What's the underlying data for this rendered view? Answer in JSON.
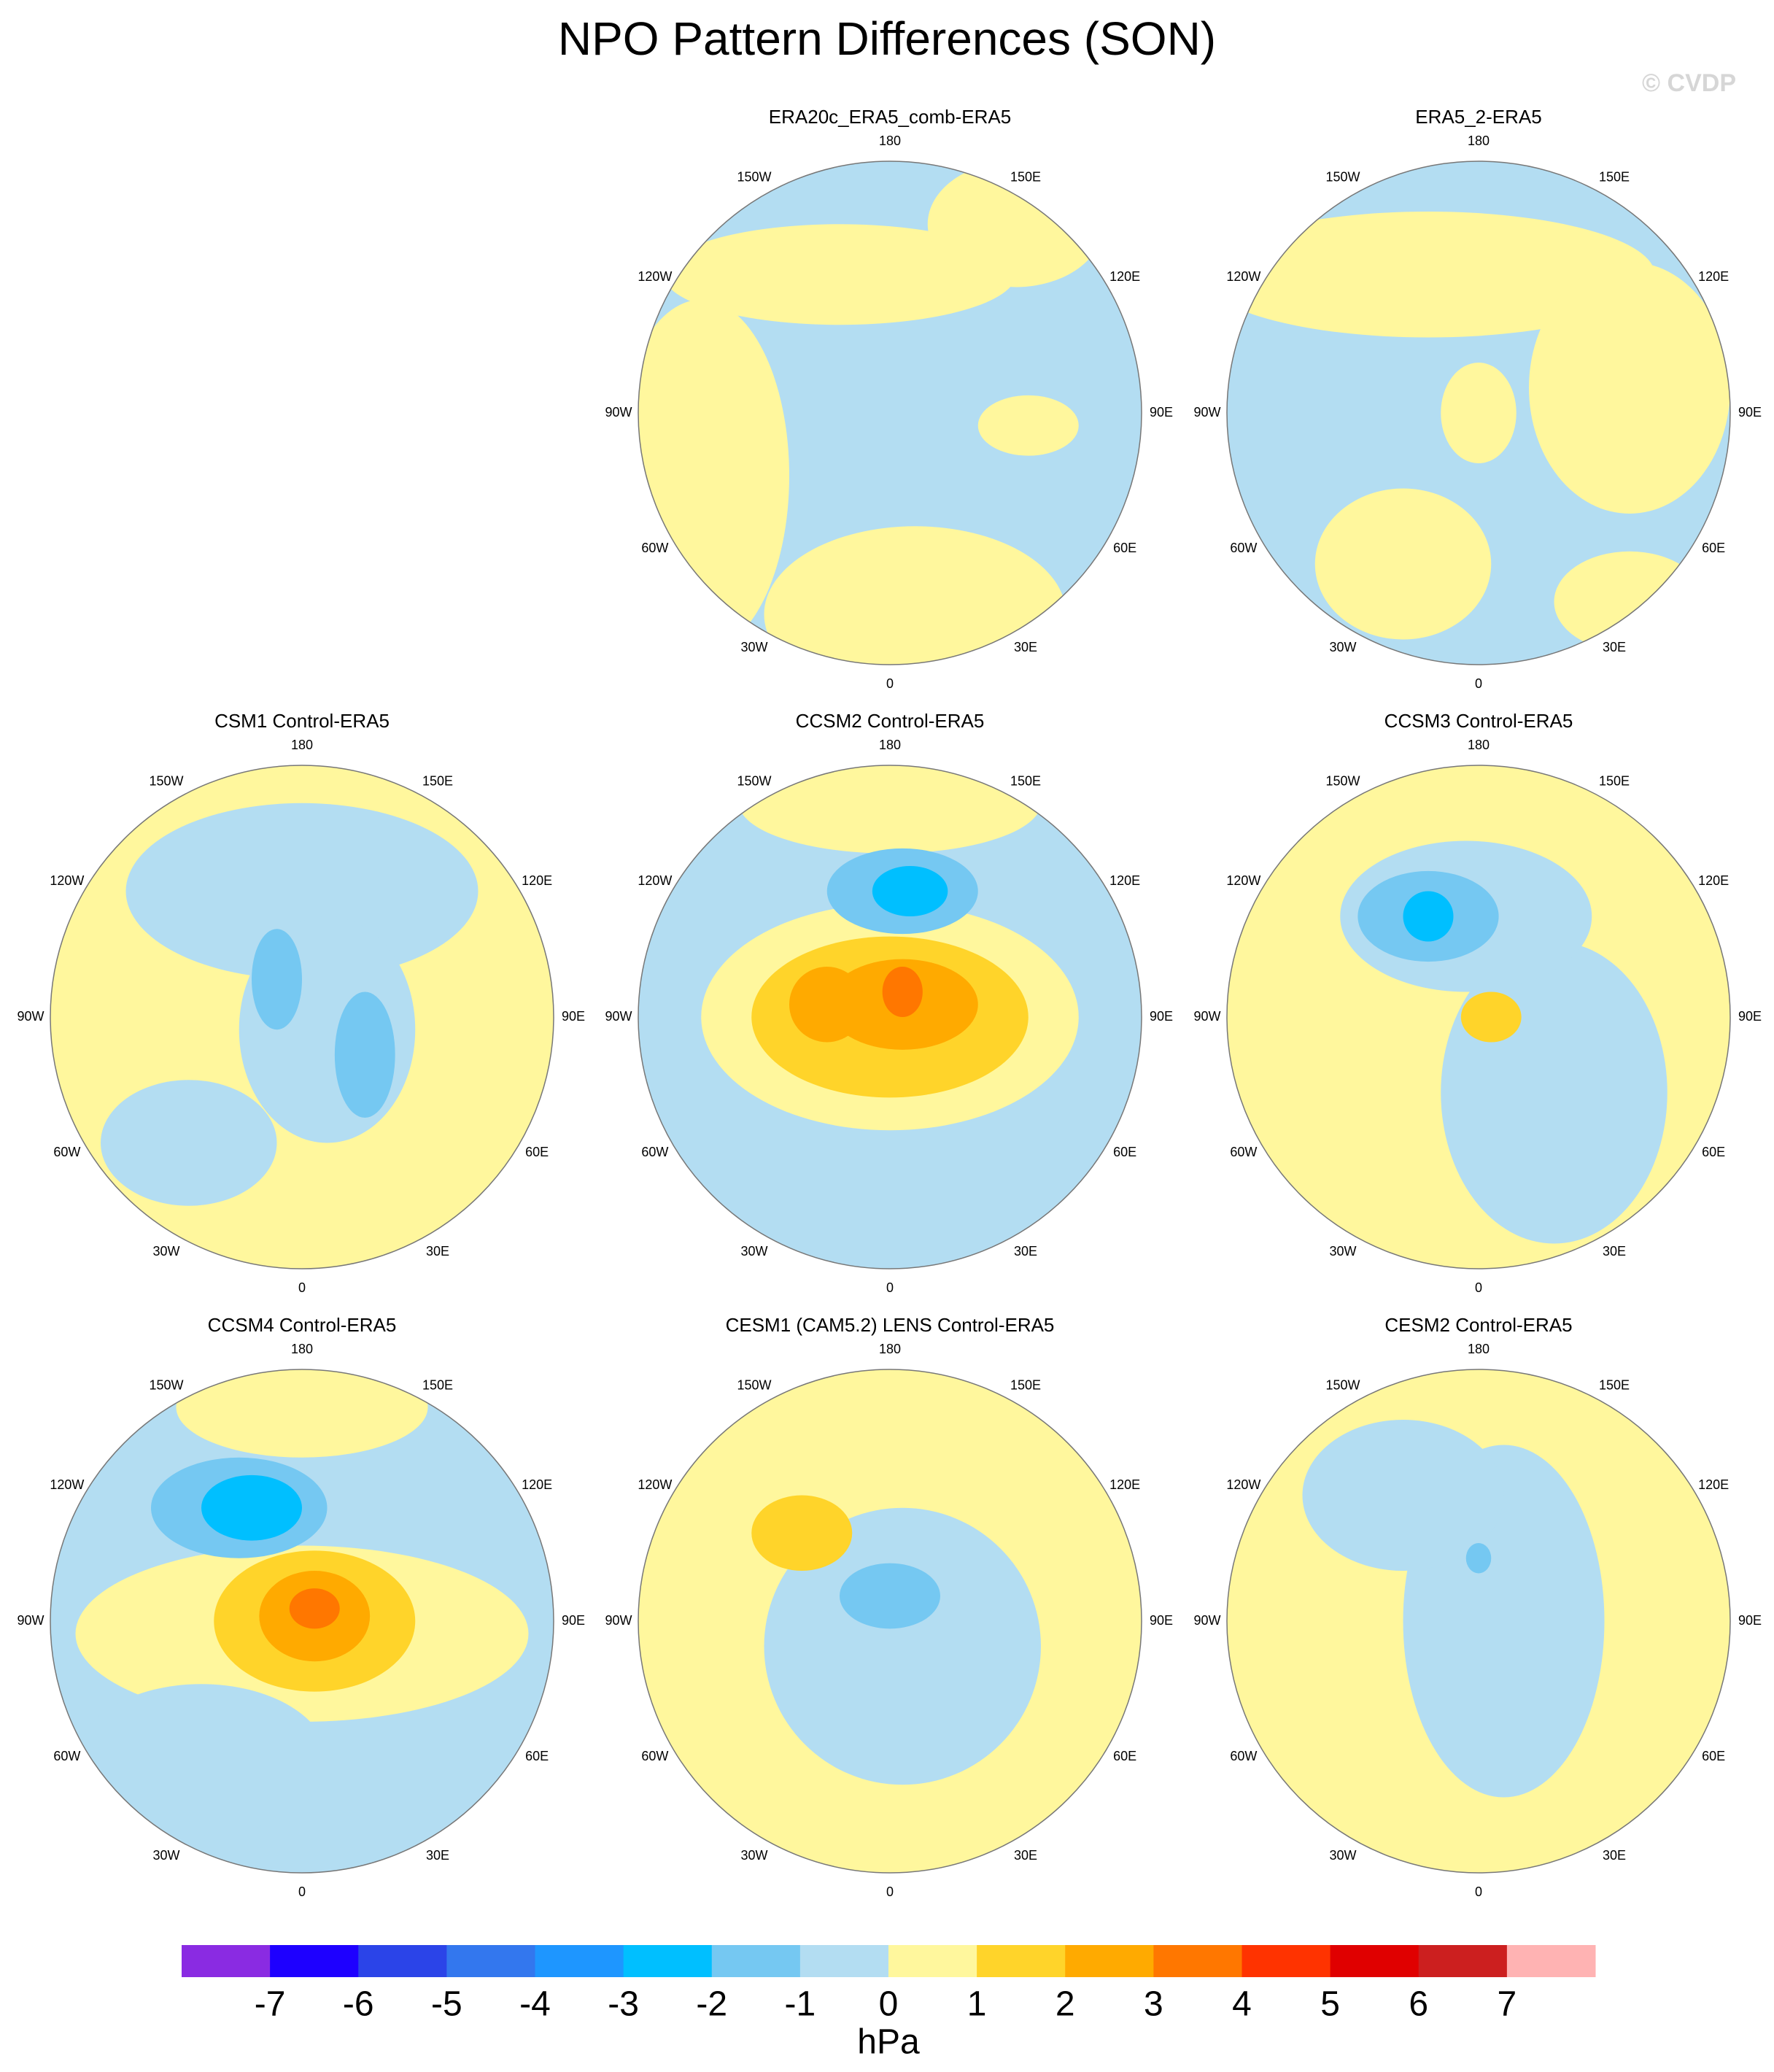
{
  "title": "NPO Pattern Differences (SON)",
  "watermark": "© CVDP",
  "longitude_labels": [
    "180",
    "150E",
    "120E",
    "90E",
    "60E",
    "30E",
    "0",
    "30W",
    "60W",
    "90W",
    "120W",
    "150W"
  ],
  "panels": [
    {
      "title": "ERA20c_ERA5_comb-ERA5"
    },
    {
      "title": "ERA5_2-ERA5"
    },
    {
      "title": "CSM1 Control-ERA5"
    },
    {
      "title": "CCSM2 Control-ERA5"
    },
    {
      "title": "CCSM3 Control-ERA5"
    },
    {
      "title": "CCSM4 Control-ERA5"
    },
    {
      "title": "CESM1 (CAM5.2) LENS Control-ERA5"
    },
    {
      "title": "CESM2 Control-ERA5"
    }
  ],
  "colorbar": {
    "levels": [
      -7,
      -6,
      -5,
      -4,
      -3,
      -2,
      -1,
      0,
      1,
      2,
      3,
      4,
      5,
      6,
      7
    ],
    "colors": [
      "#8a2be2",
      "#1e00ff",
      "#2b44e8",
      "#3377ee",
      "#1e96ff",
      "#00bfff",
      "#75c8f2",
      "#b3ddf2",
      "#fff79d",
      "#ffd42a",
      "#ffaa00",
      "#ff7700",
      "#ff3300",
      "#e00000",
      "#cc1f1f",
      "#ffb3b3"
    ],
    "units": "hPa"
  }
}
